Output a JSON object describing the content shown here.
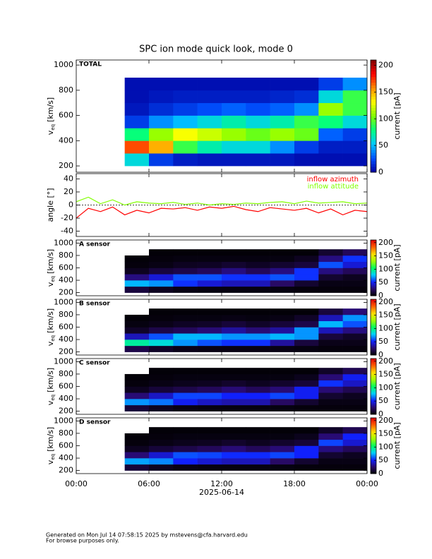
{
  "title": "SPC ion mode quick look, mode 0",
  "footer": [
    "Generated on Mon Jul 14 07:58:15 2025 by mstevens@cfa.harvard.edu",
    "For browse purposes only."
  ],
  "chart_data": [
    {
      "type": "heatmap",
      "label": "TOTAL",
      "ylabel": {
        "symbol": "v",
        "subscript": "eq",
        "unit": "[km/s]"
      },
      "xlim": [
        0,
        24
      ],
      "ylim": [
        150,
        1040
      ],
      "yticks": [
        200,
        400,
        600,
        800,
        1000
      ],
      "x_edges": [
        4,
        6,
        8,
        10,
        12,
        14,
        16,
        18,
        20,
        22,
        24
      ],
      "y_edges": [
        200,
        300,
        400,
        500,
        600,
        700,
        800,
        900
      ],
      "z": [
        [
          60,
          20,
          10,
          8,
          8,
          8,
          8,
          5,
          5,
          5
        ],
        [
          170,
          150,
          90,
          70,
          60,
          60,
          40,
          20,
          10,
          10
        ],
        [
          80,
          110,
          130,
          120,
          110,
          100,
          110,
          100,
          30,
          20
        ],
        [
          20,
          40,
          50,
          60,
          70,
          60,
          70,
          90,
          80,
          60
        ],
        [
          8,
          15,
          20,
          25,
          30,
          25,
          30,
          40,
          110,
          90
        ],
        [
          5,
          8,
          10,
          10,
          10,
          10,
          12,
          15,
          60,
          90
        ],
        [
          5,
          5,
          5,
          5,
          5,
          5,
          5,
          5,
          20,
          40
        ]
      ],
      "colorbar": {
        "label": "current [pA]",
        "lim": [
          0,
          210
        ],
        "ticks": [
          0,
          50,
          100,
          150,
          200
        ],
        "colors": [
          "#0000a0",
          "#0050ff",
          "#00c8ff",
          "#00ff80",
          "#80ff00",
          "#ffff00",
          "#ff9000",
          "#ff0000",
          "#800000"
        ]
      }
    },
    {
      "type": "line",
      "ylabel": "angle [°]",
      "xlim": [
        0,
        24
      ],
      "ylim": [
        -48,
        48
      ],
      "yticks": [
        -40,
        -20,
        0,
        20,
        40
      ],
      "reference_line": 0,
      "x": [
        0,
        1,
        2,
        3,
        4,
        5,
        6,
        7,
        8,
        9,
        10,
        11,
        12,
        13,
        14,
        15,
        16,
        17,
        18,
        19,
        20,
        21,
        22,
        23,
        24
      ],
      "series": [
        {
          "name": "inflow azimuth",
          "color": "#ff0000",
          "values": [
            -20,
            -5,
            -10,
            -3,
            -15,
            -8,
            -12,
            -5,
            -6,
            -4,
            -8,
            -3,
            -5,
            -2,
            -7,
            -10,
            -4,
            -6,
            -8,
            -5,
            -12,
            -6,
            -15,
            -8,
            -10
          ]
        },
        {
          "name": "inflow attitude",
          "color": "#80ff00",
          "values": [
            5,
            12,
            2,
            8,
            0,
            5,
            3,
            2,
            4,
            1,
            3,
            0,
            2,
            1,
            3,
            2,
            4,
            5,
            2,
            6,
            3,
            4,
            5,
            2,
            3
          ]
        }
      ]
    },
    {
      "type": "heatmap",
      "label": "A sensor",
      "ylabel": {
        "symbol": "v",
        "subscript": "eq",
        "unit": "[km/s]"
      },
      "xlim": [
        0,
        24
      ],
      "ylim": [
        150,
        1050
      ],
      "yticks": [
        200,
        400,
        600,
        800,
        1000
      ],
      "x_edges": [
        4,
        6,
        8,
        10,
        12,
        14,
        16,
        18,
        20,
        22,
        24
      ],
      "y_edges": [
        200,
        300,
        400,
        500,
        600,
        700,
        800,
        900
      ],
      "z": [
        [
          15,
          8,
          5,
          4,
          4,
          4,
          4,
          3,
          3,
          3
        ],
        [
          75,
          70,
          55,
          45,
          40,
          40,
          25,
          12,
          5,
          5
        ],
        [
          30,
          45,
          60,
          60,
          55,
          55,
          60,
          55,
          12,
          8
        ],
        [
          8,
          15,
          18,
          22,
          30,
          22,
          30,
          55,
          30,
          22
        ],
        [
          3,
          5,
          8,
          9,
          12,
          9,
          12,
          15,
          60,
          45
        ],
        [
          2,
          3,
          4,
          4,
          4,
          4,
          4,
          8,
          30,
          55
        ],
        [
          null,
          2,
          2,
          2,
          2,
          2,
          2,
          2,
          12,
          22
        ]
      ],
      "colorbar": {
        "label": "current [pA]",
        "lim": [
          0,
          210
        ],
        "ticks": [
          0,
          50,
          100,
          150,
          200
        ],
        "colors": [
          "#000000",
          "#2a0a6a",
          "#1020ff",
          "#00d0ff",
          "#00ff60",
          "#a0ff00",
          "#ffe000",
          "#ff6000",
          "#e00000"
        ]
      }
    },
    {
      "type": "heatmap",
      "label": "B sensor",
      "ylabel": {
        "symbol": "v",
        "subscript": "eq",
        "unit": "[km/s]"
      },
      "xlim": [
        0,
        24
      ],
      "ylim": [
        150,
        1050
      ],
      "yticks": [
        200,
        400,
        600,
        800,
        1000
      ],
      "x_edges": [
        4,
        6,
        8,
        10,
        12,
        14,
        16,
        18,
        20,
        22,
        24
      ],
      "y_edges": [
        200,
        300,
        400,
        500,
        600,
        700,
        800,
        900
      ],
      "z": [
        [
          18,
          10,
          6,
          5,
          5,
          5,
          5,
          4,
          3,
          3
        ],
        [
          95,
          85,
          70,
          60,
          55,
          55,
          35,
          15,
          6,
          6
        ],
        [
          40,
          60,
          75,
          75,
          70,
          70,
          75,
          70,
          15,
          10
        ],
        [
          10,
          18,
          22,
          28,
          35,
          28,
          35,
          70,
          40,
          30
        ],
        [
          4,
          6,
          9,
          10,
          14,
          10,
          14,
          18,
          75,
          60
        ],
        [
          2,
          3,
          4,
          4,
          5,
          4,
          5,
          10,
          40,
          70
        ],
        [
          null,
          2,
          2,
          2,
          2,
          2,
          2,
          2,
          15,
          28
        ]
      ],
      "colorbar": {
        "label": "current [pA]",
        "lim": [
          0,
          210
        ],
        "ticks": [
          0,
          50,
          100,
          150,
          200
        ],
        "colors": [
          "#000000",
          "#2a0a6a",
          "#1020ff",
          "#00d0ff",
          "#00ff60",
          "#a0ff00",
          "#ffe000",
          "#ff6000",
          "#e00000"
        ]
      }
    },
    {
      "type": "heatmap",
      "label": "C sensor",
      "ylabel": {
        "symbol": "v",
        "subscript": "eq",
        "unit": "[km/s]"
      },
      "xlim": [
        0,
        24
      ],
      "ylim": [
        150,
        1050
      ],
      "yticks": [
        200,
        400,
        600,
        800,
        1000
      ],
      "x_edges": [
        4,
        6,
        8,
        10,
        12,
        14,
        16,
        18,
        20,
        22,
        24
      ],
      "y_edges": [
        200,
        300,
        400,
        500,
        600,
        700,
        800,
        900
      ],
      "z": [
        [
          14,
          8,
          5,
          4,
          4,
          4,
          4,
          3,
          3,
          3
        ],
        [
          70,
          65,
          50,
          42,
          38,
          38,
          24,
          12,
          5,
          5
        ],
        [
          28,
          42,
          58,
          58,
          52,
          52,
          58,
          50,
          12,
          8
        ],
        [
          8,
          14,
          18,
          22,
          28,
          22,
          28,
          50,
          28,
          20
        ],
        [
          3,
          5,
          7,
          8,
          11,
          8,
          11,
          14,
          55,
          42
        ],
        [
          2,
          3,
          4,
          4,
          4,
          4,
          4,
          7,
          28,
          50
        ],
        [
          null,
          2,
          2,
          2,
          2,
          2,
          2,
          2,
          10,
          20
        ]
      ],
      "colorbar": {
        "label": "current [pA]",
        "lim": [
          0,
          210
        ],
        "ticks": [
          0,
          50,
          100,
          150,
          200
        ],
        "colors": [
          "#000000",
          "#2a0a6a",
          "#1020ff",
          "#00d0ff",
          "#00ff60",
          "#a0ff00",
          "#ffe000",
          "#ff6000",
          "#e00000"
        ]
      }
    },
    {
      "type": "heatmap",
      "label": "D sensor",
      "ylabel": {
        "symbol": "v",
        "subscript": "eq",
        "unit": "[km/s]"
      },
      "xlim": [
        0,
        24
      ],
      "ylim": [
        150,
        1050
      ],
      "yticks": [
        200,
        400,
        600,
        800,
        1000
      ],
      "xticks": [
        {
          "value": 0,
          "label": "00:00"
        },
        {
          "value": 6,
          "label": "06:00"
        },
        {
          "value": 12,
          "label": "12:00"
        },
        {
          "value": 18,
          "label": "18:00"
        },
        {
          "value": 24,
          "label": "00:00"
        }
      ],
      "xlabel": "2025-06-14",
      "x_edges": [
        4,
        6,
        8,
        10,
        12,
        14,
        16,
        18,
        20,
        22,
        24
      ],
      "y_edges": [
        200,
        300,
        400,
        500,
        600,
        700,
        800,
        900
      ],
      "z": [
        [
          14,
          8,
          5,
          4,
          4,
          4,
          4,
          3,
          3,
          3
        ],
        [
          72,
          68,
          52,
          44,
          40,
          40,
          25,
          12,
          5,
          5
        ],
        [
          28,
          44,
          60,
          58,
          54,
          54,
          58,
          52,
          12,
          8
        ],
        [
          8,
          14,
          18,
          22,
          28,
          22,
          28,
          52,
          30,
          22
        ],
        [
          3,
          5,
          7,
          8,
          11,
          8,
          11,
          14,
          58,
          44
        ],
        [
          2,
          3,
          4,
          4,
          4,
          4,
          4,
          7,
          28,
          52
        ],
        [
          null,
          2,
          2,
          2,
          2,
          2,
          2,
          2,
          10,
          20
        ]
      ],
      "colorbar": {
        "label": "current [pA]",
        "lim": [
          0,
          210
        ],
        "ticks": [
          0,
          50,
          100,
          150,
          200
        ],
        "colors": [
          "#000000",
          "#2a0a6a",
          "#1020ff",
          "#00d0ff",
          "#00ff60",
          "#a0ff00",
          "#ffe000",
          "#ff6000",
          "#e00000"
        ]
      }
    }
  ]
}
